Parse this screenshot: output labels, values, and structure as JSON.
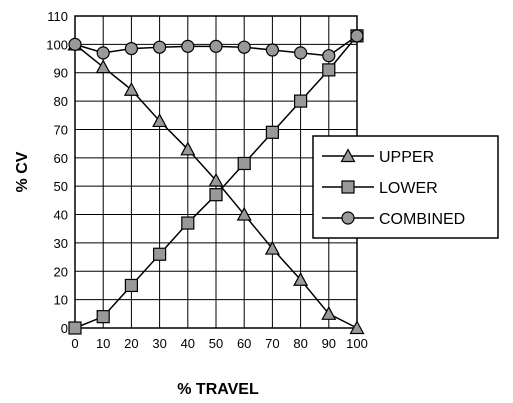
{
  "chart_data": {
    "type": "line",
    "xlabel": "% TRAVEL",
    "ylabel": "% CV",
    "xlim": [
      0,
      100
    ],
    "ylim": [
      0,
      110
    ],
    "x_ticks": [
      0,
      10,
      20,
      30,
      40,
      50,
      60,
      70,
      80,
      90,
      100
    ],
    "y_ticks": [
      0,
      10,
      20,
      30,
      40,
      50,
      60,
      70,
      80,
      90,
      100,
      110
    ],
    "grid": true,
    "legend_position": "right",
    "x": [
      0,
      10,
      20,
      30,
      40,
      50,
      60,
      70,
      80,
      90,
      100
    ],
    "series": [
      {
        "name": "UPPER",
        "marker": "triangle",
        "values": [
          100,
          92,
          84,
          73,
          63,
          52,
          40,
          28,
          17,
          5,
          0
        ]
      },
      {
        "name": "LOWER",
        "marker": "square",
        "values": [
          0,
          4,
          15,
          26,
          37,
          47,
          58,
          69,
          80,
          91,
          103
        ]
      },
      {
        "name": "COMBINED",
        "marker": "circle",
        "values": [
          100,
          97,
          98.5,
          99,
          99.3,
          99.3,
          99,
          98,
          97,
          96,
          103
        ]
      }
    ],
    "colors": {
      "line": "#000000",
      "marker_fill": "#999999",
      "grid": "#000000"
    }
  }
}
